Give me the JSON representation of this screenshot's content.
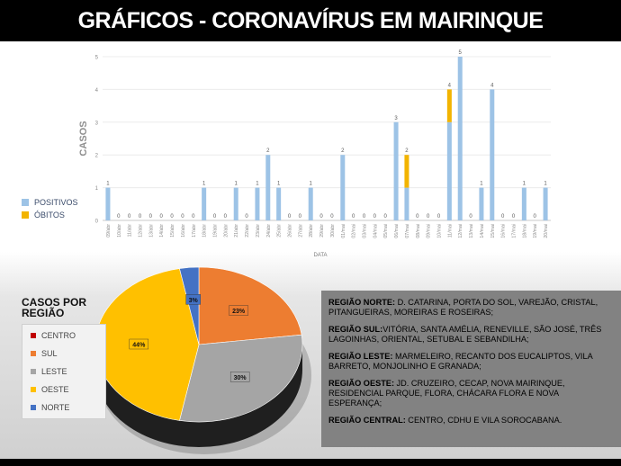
{
  "title": "GRÁFICOS - CORONAVÍRUS EM MAIRINQUE",
  "colors": {
    "positivos": "#9dc3e6",
    "obitos": "#f2b400",
    "centro": "#c00000",
    "sul": "#ed7d31",
    "leste": "#a5a5a5",
    "oeste": "#ffc000",
    "norte": "#4472c4"
  },
  "bar_chart": {
    "ylabel": "CASOS",
    "xlabel": "DATA",
    "legend": [
      "POSITIVOS",
      "ÓBITOS"
    ]
  },
  "pie_chart": {
    "legend_title": "CASOS POR REGIÃO",
    "legend": [
      "CENTRO",
      "SUL",
      "LESTE",
      "OESTE",
      "NORTE"
    ]
  },
  "regions": [
    {
      "name": "REGIÃO NORTE:",
      "text": " D. CATARINA, PORTA DO SOL, VAREJÃO, CRISTAL, PITANGUEIRAS, MOREIRAS E ROSEIRAS;"
    },
    {
      "name": "REGIÃO SUL:",
      "text": "VITÓRIA, SANTA AMÉLIA, RENEVILLE, SÃO JOSÉ, TRÊS LAGOINHAS, ORIENTAL, SETUBAL E SEBANDILHA;"
    },
    {
      "name": "REGIÃO LESTE:",
      "text": " MARMELEIRO, RECANTO DOS EUCALIPTOS, VILA BARRETO, MONJOLINHO E GRANADA;"
    },
    {
      "name": "REGIÃO OESTE:",
      "text": " JD. CRUZEIRO, CECAP, NOVA MAIRINQUE, RESIDENCIAL PARQUE, FLORA, CHÁCARA FLORA E NOVA ESPERANÇA;"
    },
    {
      "name": "REGIÃO CENTRAL:",
      "text": " CENTRO, CDHU E VILA SOROCABANA."
    }
  ],
  "chart_data": [
    {
      "type": "bar",
      "stacked": true,
      "xlabel": "DATA",
      "ylabel": "CASOS",
      "ylim": [
        0,
        5
      ],
      "yticks": [
        0,
        1,
        2,
        3,
        4,
        5
      ],
      "grid": true,
      "categories": [
        "09/abr",
        "10/abr",
        "11/abr",
        "12/abr",
        "13/abr",
        "14/abr",
        "15/abr",
        "16/abr",
        "17/abr",
        "18/abr",
        "19/abr",
        "20/abr",
        "21/abr",
        "22/abr",
        "23/abr",
        "24/abr",
        "25/abr",
        "26/abr",
        "27/abr",
        "28/abr",
        "29/abr",
        "30/abr",
        "01/mai",
        "02/mai",
        "03/mai",
        "04/mai",
        "05/mai",
        "06/mai",
        "07/mai",
        "08/mai",
        "09/mai",
        "10/mai",
        "11/mai",
        "12/mai",
        "13/mai",
        "14/mai",
        "15/mai",
        "16/mai",
        "17/mai",
        "18/mai",
        "19/mai",
        "20/mai"
      ],
      "totals": [
        1,
        0,
        0,
        0,
        0,
        0,
        0,
        0,
        0,
        1,
        0,
        0,
        1,
        0,
        1,
        2,
        1,
        0,
        0,
        1,
        0,
        0,
        2,
        0,
        0,
        0,
        0,
        3,
        2,
        0,
        0,
        0,
        4,
        5,
        0,
        1,
        4,
        0,
        0,
        1,
        0,
        1
      ],
      "series": [
        {
          "name": "POSITIVOS",
          "values": [
            1,
            0,
            0,
            0,
            0,
            0,
            0,
            0,
            0,
            1,
            0,
            0,
            1,
            0,
            1,
            2,
            1,
            0,
            0,
            1,
            0,
            0,
            2,
            0,
            0,
            0,
            0,
            3,
            1,
            0,
            0,
            0,
            3,
            5,
            0,
            1,
            4,
            0,
            0,
            1,
            0,
            1
          ]
        },
        {
          "name": "ÓBITOS",
          "values": [
            0,
            0,
            0,
            0,
            0,
            0,
            0,
            0,
            0,
            0,
            0,
            0,
            0,
            0,
            0,
            0,
            0,
            0,
            0,
            0,
            0,
            0,
            0,
            0,
            0,
            0,
            0,
            0,
            1,
            0,
            0,
            0,
            1,
            0,
            0,
            0,
            0,
            0,
            0,
            0,
            0,
            0
          ]
        }
      ]
    },
    {
      "type": "pie",
      "title": "CASOS POR REGIÃO",
      "legend": "left",
      "labels": [
        "CENTRO",
        "SUL",
        "LESTE",
        "OESTE",
        "NORTE"
      ],
      "values": [
        0,
        23,
        30,
        44,
        3
      ],
      "data_labels": [
        "",
        "23%",
        "30%",
        "44%",
        "3%"
      ]
    }
  ]
}
